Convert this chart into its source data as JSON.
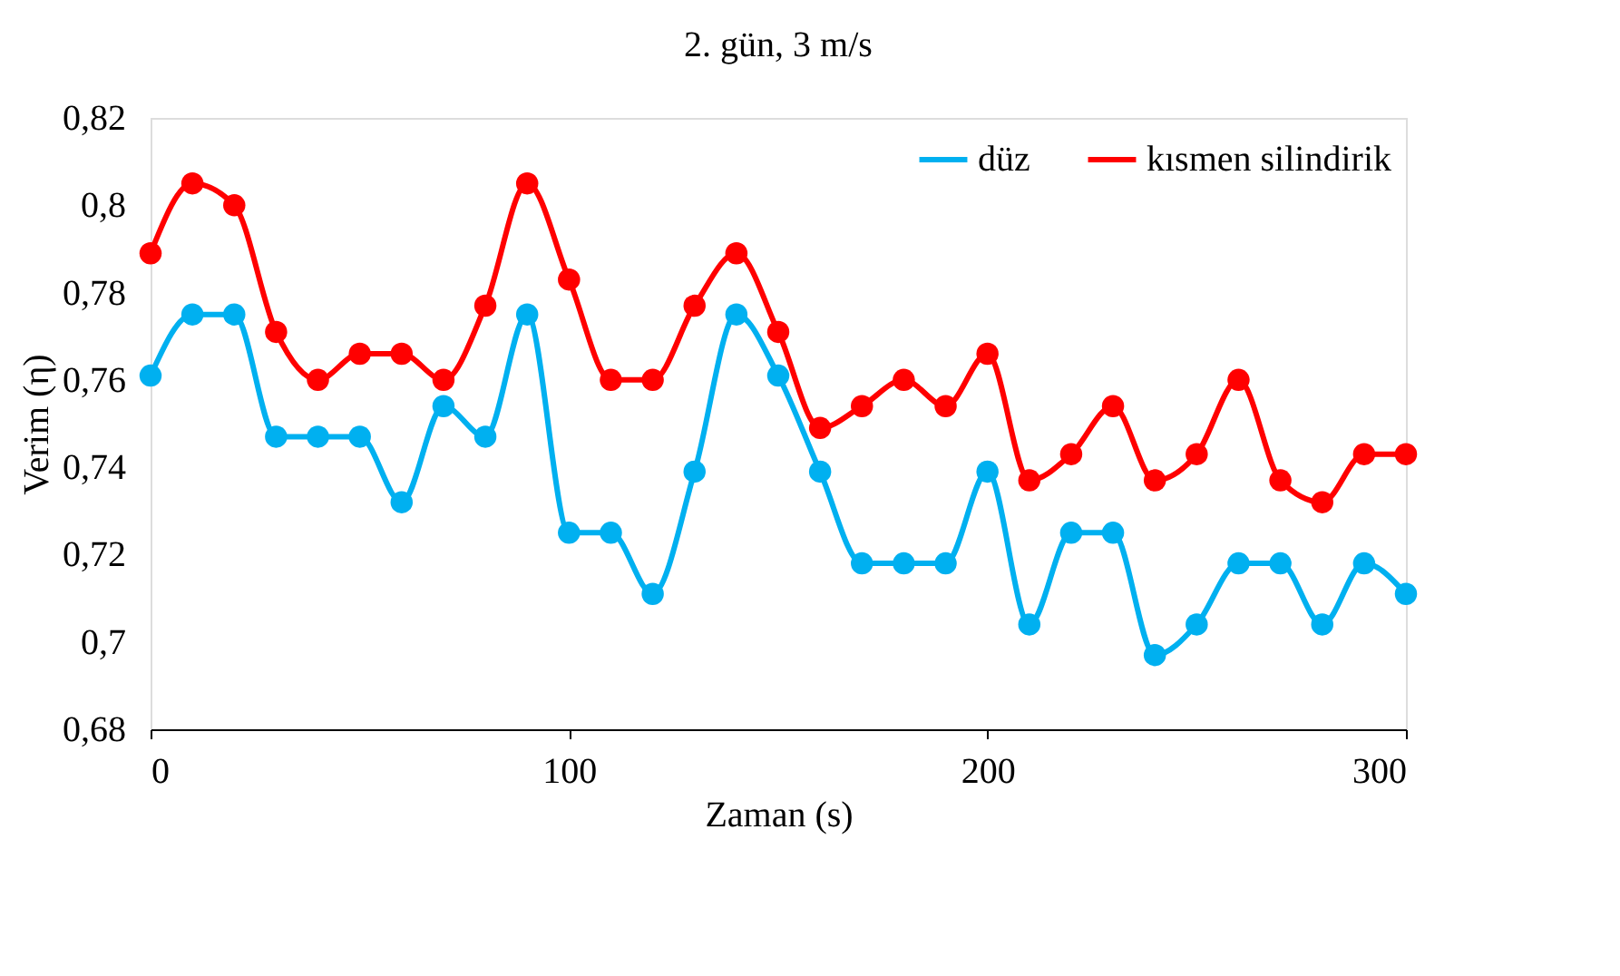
{
  "chart_data": {
    "type": "line",
    "title": "2. gün, 3 m/s",
    "xlabel": "Zaman (s)",
    "ylabel": "Verim (η)",
    "x": [
      0,
      10,
      20,
      30,
      40,
      50,
      60,
      70,
      80,
      90,
      100,
      110,
      120,
      130,
      140,
      150,
      160,
      170,
      180,
      190,
      200,
      210,
      220,
      230,
      240,
      250,
      260,
      270,
      280,
      290,
      300
    ],
    "series": [
      {
        "name": "düz",
        "color": "#00b0f0",
        "values": [
          0.761,
          0.775,
          0.775,
          0.747,
          0.747,
          0.747,
          0.732,
          0.754,
          0.747,
          0.775,
          0.725,
          0.725,
          0.711,
          0.739,
          0.775,
          0.761,
          0.739,
          0.718,
          0.718,
          0.718,
          0.739,
          0.704,
          0.725,
          0.725,
          0.697,
          0.704,
          0.718,
          0.718,
          0.704,
          0.718,
          0.711
        ]
      },
      {
        "name": "kısmen silindirik",
        "color": "#ff0000",
        "values": [
          0.789,
          0.805,
          0.8,
          0.771,
          0.76,
          0.766,
          0.766,
          0.76,
          0.777,
          0.805,
          0.783,
          0.76,
          0.76,
          0.777,
          0.789,
          0.771,
          0.749,
          0.754,
          0.76,
          0.754,
          0.766,
          0.737,
          0.743,
          0.754,
          0.737,
          0.743,
          0.76,
          0.737,
          0.732,
          0.743,
          0.743
        ]
      }
    ],
    "xlim": [
      0,
      300
    ],
    "xticks": [
      0,
      100,
      200,
      300
    ],
    "ylim": [
      0.68,
      0.82
    ],
    "yticks": [
      {
        "value": 0.68,
        "label": "0,68"
      },
      {
        "value": 0.7,
        "label": "0,7"
      },
      {
        "value": 0.72,
        "label": "0,72"
      },
      {
        "value": 0.74,
        "label": "0,74"
      },
      {
        "value": 0.76,
        "label": "0,76"
      },
      {
        "value": 0.78,
        "label": "0,78"
      },
      {
        "value": 0.8,
        "label": "0,8"
      },
      {
        "value": 0.82,
        "label": "0,82"
      }
    ],
    "grid": false,
    "legend": "top right",
    "marker": "circle",
    "line_style": "solid"
  }
}
